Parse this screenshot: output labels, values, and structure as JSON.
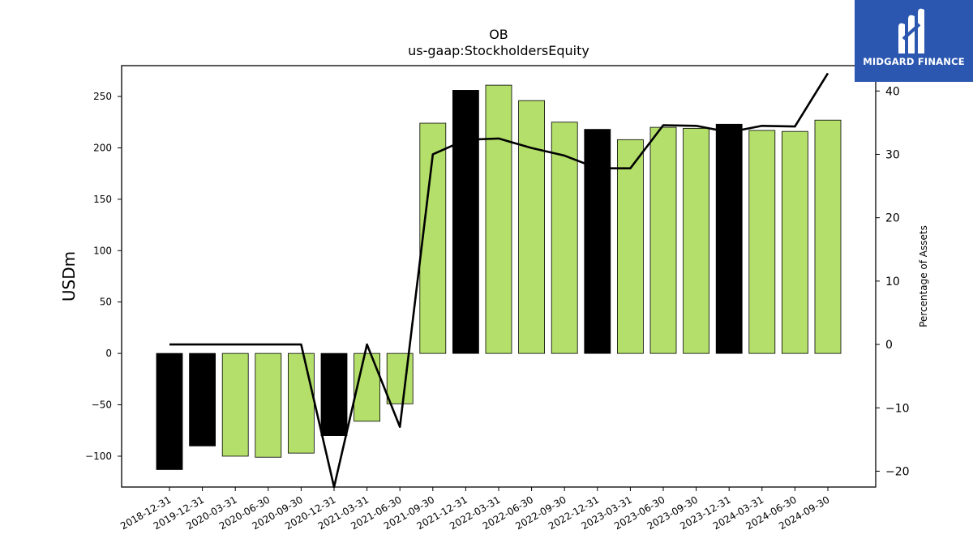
{
  "chart_data": {
    "type": "bar",
    "title": "OB",
    "subtitle": "us-gaap:StockholdersEquity",
    "ylabel": "USDm",
    "y2label": "Percentage of Assets",
    "ylim": [
      -130,
      280
    ],
    "y2lim": [
      -22.5,
      44
    ],
    "yticks": [
      -100,
      -50,
      0,
      50,
      100,
      150,
      200,
      250
    ],
    "y2ticks": [
      -20,
      -10,
      0,
      10,
      20,
      30,
      40
    ],
    "categories": [
      "2018-12-31",
      "2019-12-31",
      "2020-03-31",
      "2020-06-30",
      "2020-09-30",
      "2020-12-31",
      "2021-03-31",
      "2021-06-30",
      "2021-09-30",
      "2021-12-31",
      "2022-03-31",
      "2022-06-30",
      "2022-09-30",
      "2022-12-31",
      "2023-03-31",
      "2023-06-30",
      "2023-09-30",
      "2023-12-31",
      "2024-03-31",
      "2024-06-30",
      "2024-09-30"
    ],
    "series": [
      {
        "type": "bar",
        "axis": "left",
        "values": [
          -113,
          -90,
          -100,
          -101,
          -97,
          -80,
          -66,
          -49,
          224,
          256,
          261,
          246,
          225,
          218,
          208,
          220,
          219,
          223,
          217,
          216,
          227
        ]
      },
      {
        "type": "line",
        "axis": "right",
        "values": [
          0,
          0,
          0,
          0,
          0,
          -22.5,
          0,
          -13,
          30,
          32.3,
          32.5,
          31,
          29.8,
          27.8,
          27.8,
          34.6,
          34.5,
          33.5,
          34.5,
          34.4,
          42.8
        ]
      }
    ],
    "bar_colors": [
      "#000000",
      "#000000",
      "#b3df6a",
      "#b3df6a",
      "#b3df6a",
      "#000000",
      "#b3df6a",
      "#b3df6a",
      "#b3df6a",
      "#000000",
      "#b3df6a",
      "#b3df6a",
      "#b3df6a",
      "#000000",
      "#b3df6a",
      "#b3df6a",
      "#b3df6a",
      "#000000",
      "#b3df6a",
      "#b3df6a",
      "#b3df6a"
    ],
    "line_color": "#000000",
    "grid": false
  },
  "logo": {
    "text": "MIDGARD FINANCE",
    "color": "#2b57b0"
  }
}
